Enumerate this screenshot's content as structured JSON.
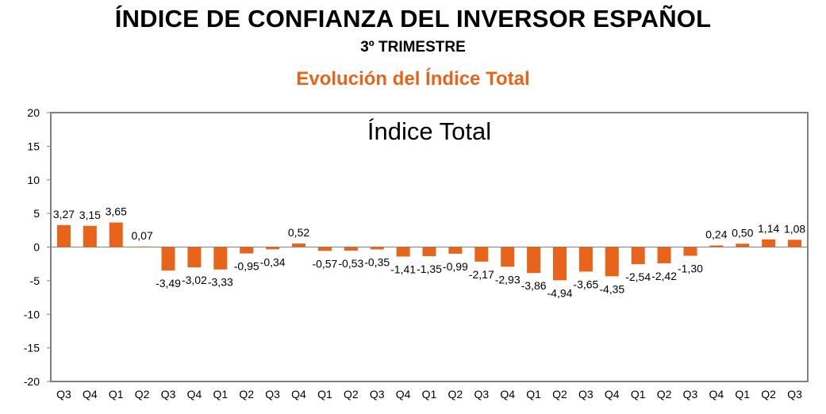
{
  "header": {
    "title": "ÍNDICE DE CONFIANZA DEL INVERSOR ESPAÑOL",
    "subtitle": "3º TRIMESTRE",
    "section": "Evolución del Índice Total"
  },
  "colors": {
    "bar": "#e8641b",
    "section_title": "#e8641b",
    "frame": "#808080"
  },
  "chart_data": {
    "type": "bar",
    "title": "Índice Total",
    "categories": [
      "Q3",
      "Q4",
      "Q1",
      "Q2",
      "Q3",
      "Q4",
      "Q1",
      "Q2",
      "Q3",
      "Q4",
      "Q1",
      "Q2",
      "Q3",
      "Q4",
      "Q1",
      "Q2",
      "Q3",
      "Q4",
      "Q1",
      "Q2",
      "Q3",
      "Q4",
      "Q1",
      "Q2",
      "Q3",
      "Q4",
      "Q1",
      "Q2",
      "Q3"
    ],
    "values": [
      3.27,
      3.15,
      3.65,
      0.07,
      -3.49,
      -3.02,
      -3.33,
      -0.95,
      -0.34,
      0.52,
      -0.57,
      -0.53,
      -0.35,
      -1.41,
      -1.35,
      -0.99,
      -2.17,
      -2.93,
      -3.86,
      -4.94,
      -3.65,
      -4.35,
      -2.54,
      -2.42,
      -1.3,
      0.24,
      0.5,
      1.14,
      1.08
    ],
    "labels": [
      "3,27",
      "3,15",
      "3,65",
      "0,07",
      "-3,49",
      "-3,02",
      "-3,33",
      "-0,95",
      "-0,34",
      "0,52",
      "-0,57",
      "-0,53",
      "-0,35",
      "-1,41",
      "-1,35",
      "-0,99",
      "-2,17",
      "-2,93",
      "-3,86",
      "-4,94",
      "-3,65",
      "-4,35",
      "-2,54",
      "-2,42",
      "-1,30",
      "0,24",
      "0,50",
      "1,14",
      "1,08"
    ],
    "ylim": [
      -20,
      20
    ],
    "yticks": [
      20,
      15,
      10,
      5,
      0,
      -5,
      -10,
      -15,
      -20
    ],
    "grid": false,
    "legend": "none"
  }
}
